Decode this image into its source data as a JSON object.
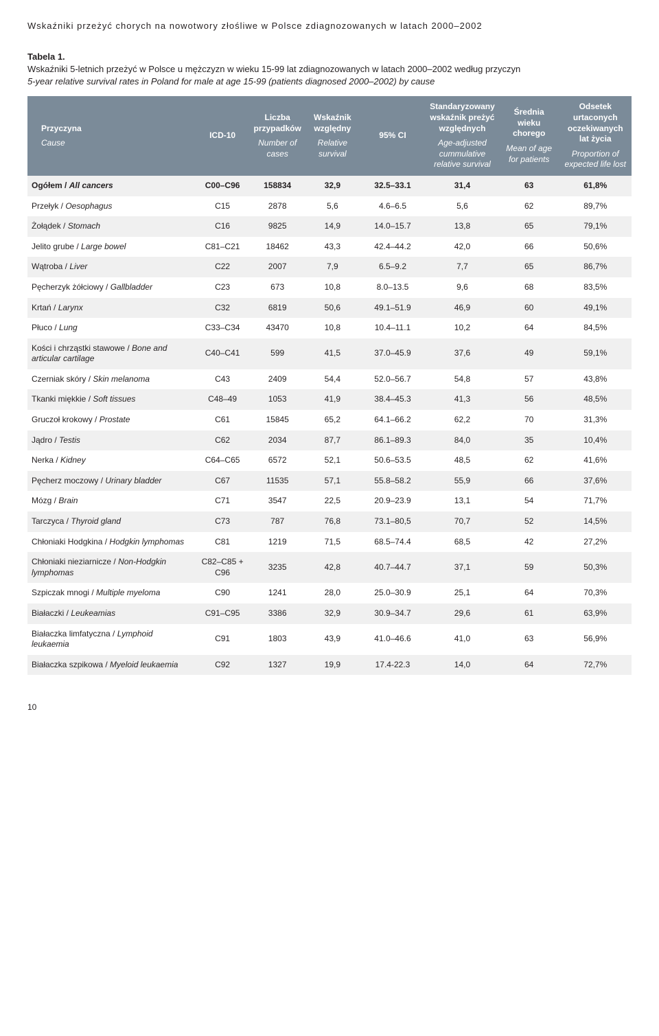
{
  "page": {
    "header": "Wskaźniki przeżyć chorych na nowotwory złośliwe w Polsce zdiagnozowanych w latach 2000–2002",
    "page_number": "10"
  },
  "table": {
    "label": "Tabela 1.",
    "title_pl": "Wskaźniki 5-letnich przeżyć w Polsce u mężczyzn w wieku 15-99 lat zdiagnozowanych w latach 2000–2002 według przyczyn",
    "title_en": "5-year relative survival rates in Poland for male at age 15-99 (patients diagnosed 2000–2002) by cause",
    "columns": [
      {
        "pl": "Przyczyna",
        "en": "Cause"
      },
      {
        "pl": "ICD-10",
        "en": ""
      },
      {
        "pl": "Liczba przypadków",
        "en": "Number of cases"
      },
      {
        "pl": "Wskaźnik względny",
        "en": "Relative survival"
      },
      {
        "pl": "95% CI",
        "en": ""
      },
      {
        "pl": "Standaryzowany wskaźnik preżyć względnych",
        "en": "Age-adjusted cummulative relative survival"
      },
      {
        "pl": "Średnia wieku chorego",
        "en": "Mean of age for patients"
      },
      {
        "pl": "Odsetek urtaconych oczekiwanych lat życia",
        "en": "Proportion of expected life lost"
      }
    ],
    "col_widths": [
      "28%",
      "9%",
      "9%",
      "9%",
      "11%",
      "12%",
      "10%",
      "12%"
    ],
    "header_bg": "#7b8b99",
    "header_fg": "#ffffff",
    "row_even_bg": "#f0f0f0",
    "row_odd_bg": "#ffffff",
    "rows": [
      {
        "bold": true,
        "pl": "Ogółem",
        "en": "All cancers",
        "icd": "C00–C96",
        "cases": "158834",
        "rel": "32,9",
        "ci": "32.5–33.1",
        "adj": "31,4",
        "age": "63",
        "lost": "61,8%"
      },
      {
        "pl": "Przełyk",
        "en": "Oesophagus",
        "icd": "C15",
        "cases": "2878",
        "rel": "5,6",
        "ci": "4.6–6.5",
        "adj": "5,6",
        "age": "62",
        "lost": "89,7%"
      },
      {
        "pl": "Żołądek",
        "en": "Stomach",
        "icd": "C16",
        "cases": "9825",
        "rel": "14,9",
        "ci": "14.0–15.7",
        "adj": "13,8",
        "age": "65",
        "lost": "79,1%"
      },
      {
        "pl": "Jelito grube",
        "en": "Large bowel",
        "icd": "C81–C21",
        "cases": "18462",
        "rel": "43,3",
        "ci": "42.4–44.2",
        "adj": "42,0",
        "age": "66",
        "lost": "50,6%"
      },
      {
        "pl": "Wątroba",
        "en": "Liver",
        "icd": "C22",
        "cases": "2007",
        "rel": "7,9",
        "ci": "6.5–9.2",
        "adj": "7,7",
        "age": "65",
        "lost": "86,7%"
      },
      {
        "pl": "Pęcherzyk żółciowy",
        "en": "Gallbladder",
        "icd": "C23",
        "cases": "673",
        "rel": "10,8",
        "ci": "8.0–13.5",
        "adj": "9,6",
        "age": "68",
        "lost": "83,5%"
      },
      {
        "pl": "Krtań",
        "en": "Larynx",
        "icd": "C32",
        "cases": "6819",
        "rel": "50,6",
        "ci": "49.1–51.9",
        "adj": "46,9",
        "age": "60",
        "lost": "49,1%"
      },
      {
        "pl": "Płuco",
        "en": "Lung",
        "icd": "C33–C34",
        "cases": "43470",
        "rel": "10,8",
        "ci": "10.4–11.1",
        "adj": "10,2",
        "age": "64",
        "lost": "84,5%"
      },
      {
        "pl": "Kości i chrząstki stawowe",
        "en": "Bone and articular cartilage",
        "icd": "C40–C41",
        "cases": "599",
        "rel": "41,5",
        "ci": "37.0–45.9",
        "adj": "37,6",
        "age": "49",
        "lost": "59,1%"
      },
      {
        "pl": "Czerniak skóry",
        "en": "Skin melanoma",
        "icd": "C43",
        "cases": "2409",
        "rel": "54,4",
        "ci": "52.0–56.7",
        "adj": "54,8",
        "age": "57",
        "lost": "43,8%"
      },
      {
        "pl": "Tkanki miękkie",
        "en": "Soft tissues",
        "icd": "C48–49",
        "cases": "1053",
        "rel": "41,9",
        "ci": "38.4–45.3",
        "adj": "41,3",
        "age": "56",
        "lost": "48,5%"
      },
      {
        "pl": "Gruczoł krokowy",
        "en": "Prostate",
        "icd": "C61",
        "cases": "15845",
        "rel": "65,2",
        "ci": "64.1–66.2",
        "adj": "62,2",
        "age": "70",
        "lost": "31,3%"
      },
      {
        "pl": "Jądro",
        "en": "Testis",
        "icd": "C62",
        "cases": "2034",
        "rel": "87,7",
        "ci": "86.1–89.3",
        "adj": "84,0",
        "age": "35",
        "lost": "10,4%"
      },
      {
        "pl": "Nerka",
        "en": "Kidney",
        "icd": "C64–C65",
        "cases": "6572",
        "rel": "52,1",
        "ci": "50.6–53.5",
        "adj": "48,5",
        "age": "62",
        "lost": "41,6%"
      },
      {
        "pl": "Pęcherz moczowy",
        "en": "Urinary bladder",
        "icd": "C67",
        "cases": "11535",
        "rel": "57,1",
        "ci": "55.8–58.2",
        "adj": "55,9",
        "age": "66",
        "lost": "37,6%"
      },
      {
        "pl": "Mózg",
        "en": "Brain",
        "icd": "C71",
        "cases": "3547",
        "rel": "22,5",
        "ci": "20.9–23.9",
        "adj": "13,1",
        "age": "54",
        "lost": "71,7%"
      },
      {
        "pl": "Tarczyca",
        "en": "Thyroid gland",
        "icd": "C73",
        "cases": "787",
        "rel": "76,8",
        "ci": "73.1–80,5",
        "adj": "70,7",
        "age": "52",
        "lost": "14,5%"
      },
      {
        "pl": "Chłoniaki Hodgkina",
        "en": "Hodgkin lymphomas",
        "icd": "C81",
        "cases": "1219",
        "rel": "71,5",
        "ci": "68.5–74.4",
        "adj": "68,5",
        "age": "42",
        "lost": "27,2%"
      },
      {
        "pl": "Chłoniaki nieziarnicze",
        "en": "Non-Hodgkin lymphomas",
        "icd": "C82–C85 + C96",
        "cases": "3235",
        "rel": "42,8",
        "ci": "40.7–44.7",
        "adj": "37,1",
        "age": "59",
        "lost": "50,3%"
      },
      {
        "pl": "Szpiczak mnogi",
        "en": "Multiple myeloma",
        "icd": "C90",
        "cases": "1241",
        "rel": "28,0",
        "ci": "25.0–30.9",
        "adj": "25,1",
        "age": "64",
        "lost": "70,3%"
      },
      {
        "pl": "Białaczki",
        "en": "Leukeamias",
        "icd": "C91–C95",
        "cases": "3386",
        "rel": "32,9",
        "ci": "30.9–34.7",
        "adj": "29,6",
        "age": "61",
        "lost": "63,9%"
      },
      {
        "pl": "Białaczka limfatyczna",
        "en": "Lymphoid leukaemia",
        "icd": "C91",
        "cases": "1803",
        "rel": "43,9",
        "ci": "41.0–46.6",
        "adj": "41,0",
        "age": "63",
        "lost": "56,9%"
      },
      {
        "pl": "Białaczka szpikowa",
        "en": "Myeloid leukaemia",
        "icd": "C92",
        "cases": "1327",
        "rel": "19,9",
        "ci": "17.4-22.3",
        "adj": "14,0",
        "age": "64",
        "lost": "72,7%"
      }
    ]
  }
}
